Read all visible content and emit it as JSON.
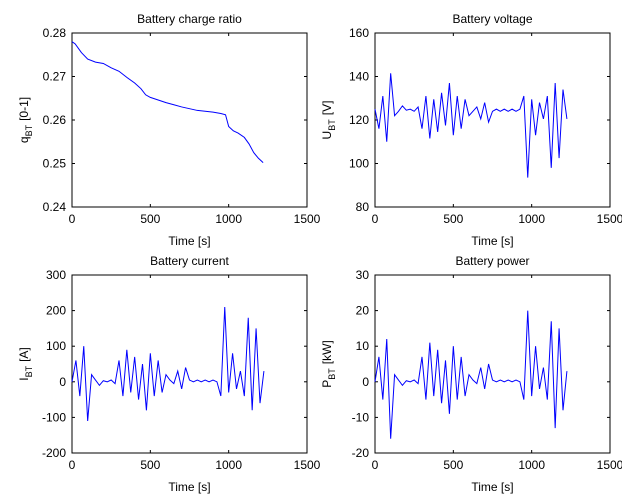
{
  "chart_data": [
    {
      "type": "line",
      "title": "Battery charge ratio",
      "xlabel": "Time [s]",
      "ylabel_parts": [
        "q",
        "BT",
        "[0-1]"
      ],
      "x": [
        0,
        20,
        60,
        100,
        150,
        200,
        250,
        300,
        350,
        400,
        440,
        470,
        500,
        550,
        600,
        650,
        700,
        750,
        800,
        850,
        900,
        950,
        980,
        1000,
        1030,
        1060,
        1100,
        1130,
        1160,
        1190,
        1220
      ],
      "color": "#0000ff",
      "values": [
        0.278,
        0.2775,
        0.2755,
        0.274,
        0.2733,
        0.273,
        0.272,
        0.2712,
        0.2698,
        0.2685,
        0.2672,
        0.2658,
        0.2652,
        0.2646,
        0.264,
        0.2635,
        0.263,
        0.2626,
        0.2622,
        0.262,
        0.2618,
        0.2615,
        0.2612,
        0.2585,
        0.2575,
        0.257,
        0.256,
        0.2545,
        0.2525,
        0.2512,
        0.2502
      ],
      "xlim": [
        0,
        1500
      ],
      "xticks": [
        0,
        500,
        1000,
        1500
      ],
      "ylim": [
        0.24,
        0.28
      ],
      "yticks": [
        0.24,
        0.25,
        0.26,
        0.27,
        0.28
      ]
    },
    {
      "type": "line",
      "title": "Battery voltage",
      "xlabel": "Time [s]",
      "ylabel_parts": [
        "U",
        "BT",
        "[V]"
      ],
      "x": [
        0,
        25,
        50,
        75,
        100,
        125,
        150,
        175,
        200,
        225,
        250,
        275,
        300,
        325,
        350,
        375,
        400,
        425,
        450,
        475,
        500,
        525,
        550,
        575,
        600,
        625,
        650,
        675,
        700,
        725,
        750,
        775,
        800,
        825,
        850,
        875,
        900,
        925,
        950,
        975,
        1000,
        1025,
        1050,
        1075,
        1100,
        1125,
        1150,
        1175,
        1200,
        1225
      ],
      "color": "#0000ff",
      "values": [
        125,
        116,
        131,
        110,
        141.5,
        122,
        124,
        126.5,
        124.5,
        125,
        124,
        126,
        116,
        131,
        111.5,
        129.5,
        114.5,
        132.5,
        117.5,
        137,
        113,
        131,
        116,
        129.5,
        122,
        124,
        126,
        120.5,
        128,
        119,
        124,
        125,
        124,
        125,
        124,
        125,
        124,
        125,
        131,
        93.5,
        129.5,
        113,
        128,
        120.5,
        131,
        98,
        137,
        102.5,
        134,
        120.5
      ],
      "xlim": [
        0,
        1500
      ],
      "xticks": [
        0,
        500,
        1000,
        1500
      ],
      "ylim": [
        80,
        160
      ],
      "yticks": [
        80,
        100,
        120,
        140,
        160
      ]
    },
    {
      "type": "line",
      "title": "Battery current",
      "xlabel": "Time [s]",
      "ylabel_parts": [
        "I",
        "BT",
        "[A]"
      ],
      "x": [
        0,
        25,
        50,
        75,
        100,
        125,
        150,
        175,
        200,
        225,
        250,
        275,
        300,
        325,
        350,
        375,
        400,
        425,
        450,
        475,
        500,
        525,
        550,
        575,
        600,
        625,
        650,
        675,
        700,
        725,
        750,
        775,
        800,
        825,
        850,
        875,
        900,
        925,
        950,
        975,
        1000,
        1025,
        1050,
        1075,
        1100,
        1125,
        1150,
        1175,
        1200,
        1225
      ],
      "color": "#0000ff",
      "values": [
        0,
        60,
        -40,
        100,
        -110,
        20,
        5,
        -10,
        3,
        0,
        5,
        -5,
        60,
        -40,
        90,
        -30,
        70,
        -50,
        50,
        -80,
        80,
        -40,
        60,
        -30,
        20,
        5,
        -5,
        30,
        -20,
        40,
        5,
        0,
        5,
        0,
        5,
        0,
        5,
        0,
        -40,
        210,
        -30,
        80,
        -20,
        30,
        -40,
        180,
        -80,
        150,
        -60,
        30
      ],
      "xlim": [
        0,
        1500
      ],
      "xticks": [
        0,
        500,
        1000,
        1500
      ],
      "ylim": [
        -200,
        300
      ],
      "yticks": [
        -200,
        -100,
        0,
        100,
        200,
        300
      ]
    },
    {
      "type": "line",
      "title": "Battery power",
      "xlabel": "Time [s]",
      "ylabel_parts": [
        "P",
        "BT",
        "[kW]"
      ],
      "x": [
        0,
        25,
        50,
        75,
        100,
        125,
        150,
        175,
        200,
        225,
        250,
        275,
        300,
        325,
        350,
        375,
        400,
        425,
        450,
        475,
        500,
        525,
        550,
        575,
        600,
        625,
        650,
        675,
        700,
        725,
        750,
        775,
        800,
        825,
        850,
        875,
        900,
        925,
        950,
        975,
        1000,
        1025,
        1050,
        1075,
        1100,
        1125,
        1150,
        1175,
        1200,
        1225
      ],
      "color": "#0000ff",
      "values": [
        0,
        7,
        -5,
        12,
        -16,
        2,
        0.5,
        -1,
        0.3,
        0,
        0.5,
        -0.5,
        7,
        -5,
        11,
        -4,
        9,
        -6,
        6,
        -9,
        10,
        -5,
        7,
        -4,
        2,
        0.5,
        -0.5,
        4,
        -2,
        5,
        0.5,
        0,
        0.5,
        0,
        0.5,
        0,
        0.5,
        0,
        -5,
        20,
        -4,
        10,
        -2,
        4,
        -5,
        17,
        -13,
        15,
        -8,
        3
      ],
      "xlim": [
        0,
        1500
      ],
      "xticks": [
        0,
        500,
        1000,
        1500
      ],
      "ylim": [
        -20,
        30
      ],
      "yticks": [
        -20,
        -10,
        0,
        10,
        20,
        30
      ]
    }
  ]
}
